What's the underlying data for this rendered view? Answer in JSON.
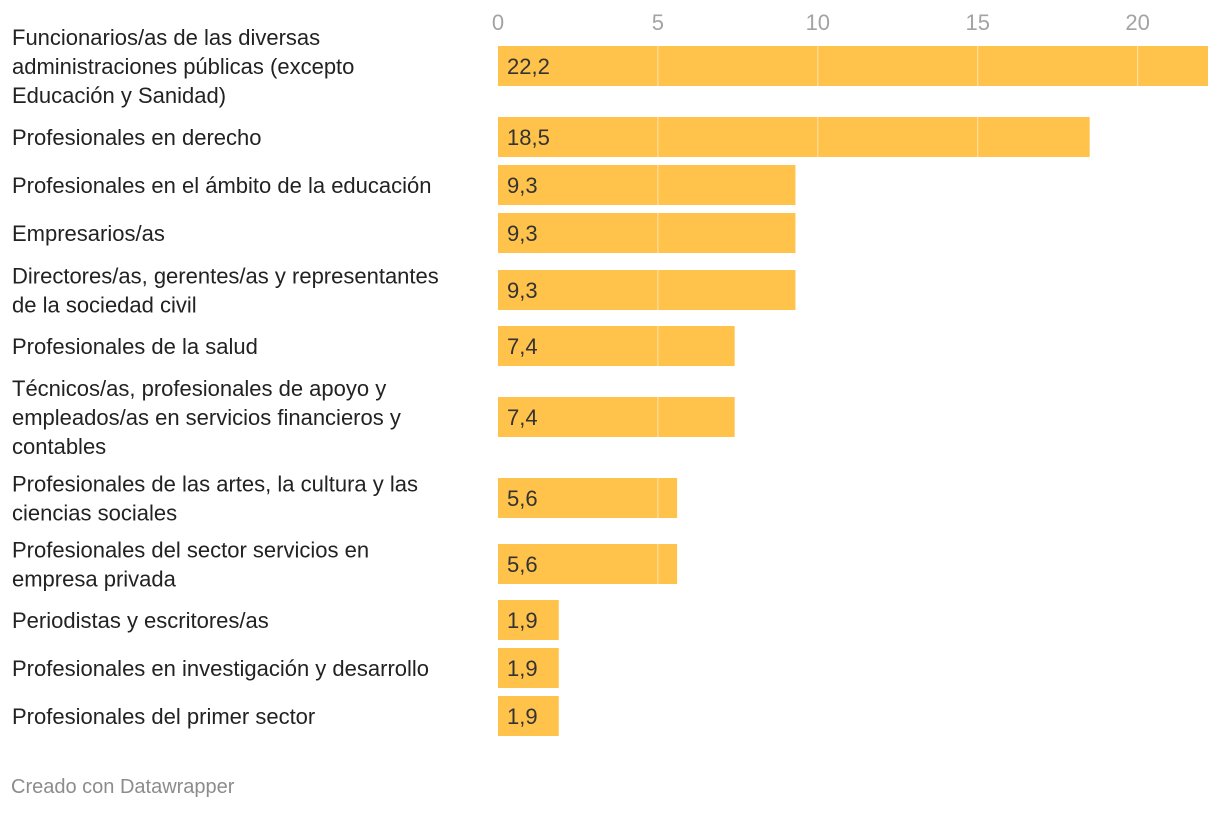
{
  "chart_data": {
    "type": "bar",
    "orientation": "horizontal",
    "categories": [
      [
        "Funcionarios/as de las diversas",
        "administraciones públicas (excepto",
        "Educación y Sanidad)"
      ],
      [
        "Profesionales en derecho"
      ],
      [
        "Profesionales en el ámbito de la educación"
      ],
      [
        "Empresarios/as"
      ],
      [
        "Directores/as, gerentes/as y representantes",
        "de la sociedad civil"
      ],
      [
        "Profesionales de la salud"
      ],
      [
        "Técnicos/as, profesionales de apoyo y",
        "empleados/as en servicios financieros y",
        "contables"
      ],
      [
        "Profesionales de las artes, la cultura y las",
        "ciencias sociales"
      ],
      [
        "Profesionales del sector servicios en",
        "empresa privada"
      ],
      [
        "Periodistas y escritores/as"
      ],
      [
        "Profesionales en investigación y desarrollo"
      ],
      [
        "Profesionales del primer sector"
      ]
    ],
    "values": [
      22.2,
      18.5,
      9.3,
      9.3,
      9.3,
      7.4,
      7.4,
      5.6,
      5.6,
      1.9,
      1.9,
      1.9
    ],
    "value_labels": [
      "22,2",
      "18,5",
      "9,3",
      "9,3",
      "9,3",
      "7,4",
      "7,4",
      "5,6",
      "5,6",
      "1,9",
      "1,9",
      "1,9"
    ],
    "xticks": [
      0,
      5,
      10,
      15,
      20
    ],
    "xlim": [
      0,
      22.2
    ],
    "title": "",
    "xlabel": "",
    "ylabel": "",
    "grid": true,
    "bar_color": "#ffc24b",
    "tick_color": "#a3a3a3"
  },
  "footer": {
    "credit": "Creado con Datawrapper"
  }
}
